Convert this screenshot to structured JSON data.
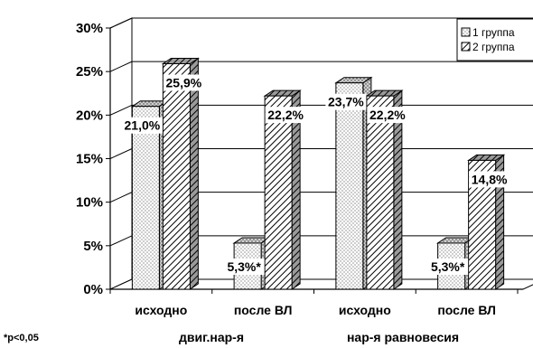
{
  "chart_data": {
    "type": "bar",
    "categories": [
      "исходно",
      "после ВЛ",
      "исходно",
      "после ВЛ"
    ],
    "groups": [
      {
        "label": "двиг.нар-я",
        "categories": [
          0,
          1
        ]
      },
      {
        "label": "нар-я равновесия",
        "categories": [
          2,
          3
        ]
      }
    ],
    "series": [
      {
        "name": "1 группа",
        "values": [
          21.0,
          5.3,
          23.7,
          5.3
        ],
        "labels": [
          "21,0%",
          "5,3%*",
          "23,7%",
          "5,3%*"
        ],
        "pattern": "dots"
      },
      {
        "name": "2 группа",
        "values": [
          25.9,
          22.2,
          22.2,
          14.8
        ],
        "labels": [
          "25,9%",
          "22,2%",
          "22,2%",
          "14,8%"
        ],
        "pattern": "hatch"
      }
    ],
    "ylim": [
      0,
      30
    ],
    "yticks": [
      "0%",
      "5%",
      "10%",
      "15%",
      "20%",
      "25%",
      "30%"
    ],
    "ytick_values": [
      0,
      5,
      10,
      15,
      20,
      25,
      30
    ],
    "grid": true,
    "legend": "top-right",
    "footnote": "*p<0,05",
    "title": "",
    "xlabel": "",
    "ylabel": ""
  }
}
